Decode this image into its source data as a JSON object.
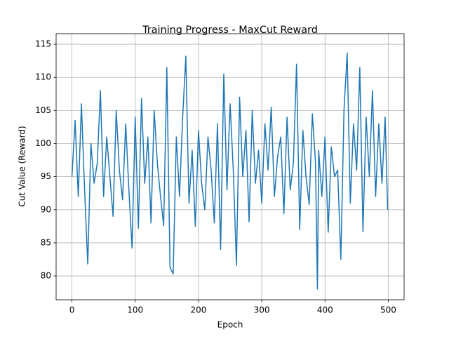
{
  "chart_data": {
    "type": "line",
    "title": "Training Progress - MaxCut Reward",
    "x_label": "Epoch",
    "y_label": "Cut Value (Reward)",
    "x": [
      0,
      5,
      10,
      15,
      20,
      25,
      30,
      35,
      40,
      45,
      50,
      55,
      60,
      65,
      70,
      75,
      80,
      85,
      90,
      95,
      100,
      105,
      110,
      115,
      120,
      125,
      130,
      135,
      140,
      145,
      150,
      155,
      160,
      165,
      170,
      175,
      180,
      185,
      190,
      195,
      200,
      205,
      210,
      215,
      220,
      225,
      230,
      235,
      240,
      245,
      250,
      255,
      260,
      265,
      270,
      275,
      280,
      285,
      290,
      295,
      300,
      305,
      310,
      315,
      320,
      325,
      330,
      335,
      340,
      345,
      350,
      355,
      360,
      365,
      370,
      375,
      380,
      385,
      388,
      390,
      395,
      400,
      405,
      410,
      415,
      420,
      425,
      430,
      435,
      440,
      445,
      450,
      455,
      460,
      465,
      470,
      475,
      480,
      485,
      490,
      495,
      499
    ],
    "series": [
      {
        "color": "#1f77b4",
        "values": [
          95,
          103.5,
          92,
          106,
          93,
          81.8,
          100,
          94,
          97,
          108,
          92,
          101,
          95,
          89,
          105,
          96,
          91.5,
          103,
          93,
          84.2,
          104,
          87.2,
          106.8,
          94,
          101,
          88,
          105,
          97,
          92,
          87.6,
          111.5,
          81.3,
          80.3,
          101,
          92,
          104,
          113.2,
          91,
          99,
          87.5,
          102,
          94,
          90,
          101,
          96,
          88,
          103,
          84,
          110.5,
          93,
          106,
          96,
          81.6,
          107,
          95,
          102,
          88.2,
          105,
          94,
          99,
          91,
          103,
          96,
          105.5,
          92,
          98,
          101,
          89.4,
          104,
          93,
          97,
          112,
          87,
          102,
          95,
          90.8,
          104.5,
          97,
          78,
          99,
          92,
          101,
          86.6,
          99.5,
          95,
          96,
          82.5,
          105,
          113.7,
          91,
          103,
          96,
          111.5,
          86.7,
          104,
          95,
          108,
          92,
          103,
          94,
          104,
          90
        ]
      }
    ],
    "xlim": [
      -25,
      525
    ],
    "ylim": [
      76.4,
      116.6
    ],
    "xticks": [
      0,
      100,
      200,
      300,
      400,
      500
    ],
    "yticks": [
      80,
      85,
      90,
      95,
      100,
      105,
      110,
      115
    ],
    "grid": true
  }
}
